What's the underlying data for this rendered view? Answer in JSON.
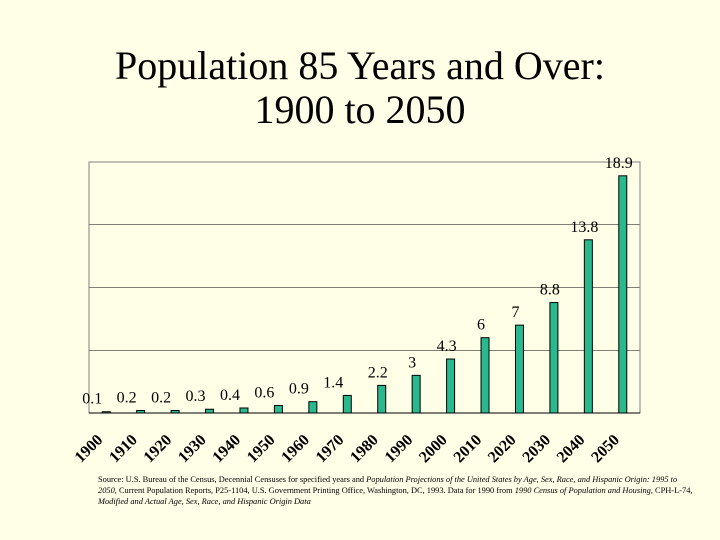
{
  "slide": {
    "title_line1": "Population 85 Years and Over:",
    "title_line2": "1900 to 2050"
  },
  "chart_data": {
    "type": "bar",
    "title": "Population 85 Years and Over: 1900 to 2050",
    "xlabel": "",
    "ylabel": "",
    "categories": [
      "1900",
      "1910",
      "1920",
      "1930",
      "1940",
      "1950",
      "1960",
      "1970",
      "1980",
      "1990",
      "2000",
      "2010",
      "2020",
      "2030",
      "2040",
      "2050"
    ],
    "values": [
      0.1,
      0.2,
      0.2,
      0.3,
      0.4,
      0.6,
      0.9,
      1.4,
      2.2,
      3,
      4.3,
      6,
      7,
      8.8,
      13.8,
      18.9
    ],
    "labels": [
      "0.1",
      "0.2",
      "0.2",
      "0.3",
      "0.4",
      "0.6",
      "0.9",
      "1.4",
      "2.2",
      "3",
      "4.3",
      "6",
      "7",
      "8.8",
      "13.8",
      "18.9"
    ],
    "ylim": [
      0,
      20
    ],
    "grid": true,
    "bar_color": "#2ab98f",
    "grid_color": "#000000"
  },
  "source": {
    "part1": "Source:  U.S. Bureau of the Census, Decennial Censuses for specified years and ",
    "part2_italic": "Population Projections of the United States by Age, Sex, Race, and Hispanic Origin: 1995 to 2050",
    "part3": ", Current Population Reports, P25-1104, U.S. Government Printing Office, Washington, DC, 1993.  Data for 1990 from ",
    "part4_italic": "1990 Census of Population and Housing",
    "part5": ", CPH-L-74, ",
    "part6_italic": "Modified and Actual Age, Sex, Race, and Hispanic Origin Data"
  }
}
